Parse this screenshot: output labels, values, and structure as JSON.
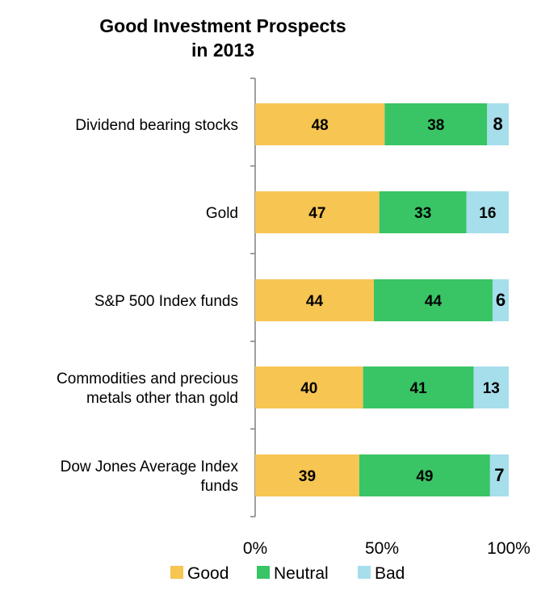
{
  "chart_data": {
    "type": "bar",
    "orientation": "horizontal",
    "stacked": true,
    "title": [
      "Good Investment Prospects",
      "in 2013"
    ],
    "categories": [
      [
        "Dividend bearing stocks"
      ],
      [
        "Gold"
      ],
      [
        "S&P 500 Index funds"
      ],
      [
        "Commodities and precious",
        "metals other than gold"
      ],
      [
        "Dow Jones Average Index",
        "funds"
      ]
    ],
    "series": [
      {
        "name": "Good",
        "values": [
          48,
          47,
          44,
          40,
          39
        ],
        "color": "#F6C552"
      },
      {
        "name": "Neutral",
        "values": [
          38,
          33,
          44,
          41,
          49
        ],
        "color": "#39C465"
      },
      {
        "name": "Bad",
        "values": [
          8,
          16,
          6,
          13,
          7
        ],
        "color": "#A6DEEB"
      }
    ],
    "xlim": [
      0,
      100
    ],
    "xticks": [
      "0%",
      "50%",
      "100%"
    ],
    "grid": false,
    "legend": "bottom"
  }
}
